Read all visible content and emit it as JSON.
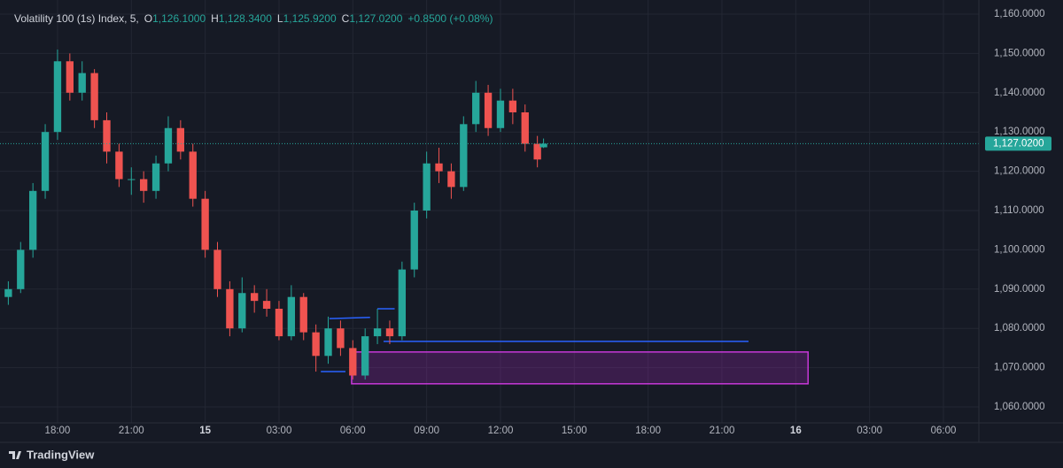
{
  "chart_data": {
    "type": "candlestick",
    "symbol": "Volatility 100 (1s) Index, 5,",
    "ohlc_legend": [
      {
        "prefix": "O",
        "text": "1,126.1000"
      },
      {
        "prefix": "H",
        "text": "1,128.3400"
      },
      {
        "prefix": "L",
        "text": "1,125.9200"
      },
      {
        "prefix": "C",
        "text": "1,127.0200"
      }
    ],
    "change": "+0.8500 (+0.08%)",
    "x": [
      16,
      16.5,
      17,
      17.5,
      18,
      18.5,
      19,
      19.5,
      20,
      20.5,
      21,
      21.5,
      22,
      22.5,
      23,
      23.5,
      24,
      24.5,
      25,
      25.5,
      26,
      26.5,
      27,
      27.5,
      28,
      28.5,
      29,
      29.5,
      30,
      30.5,
      31,
      31.5,
      32,
      32.5,
      33,
      33.5,
      34,
      34.5,
      35,
      35.5,
      36,
      36.5,
      37,
      37.5,
      37.75
    ],
    "open": [
      1088,
      1090,
      1100,
      1115,
      1130,
      1148,
      1140,
      1145,
      1133,
      1125,
      1118,
      1118,
      1115,
      1122,
      1131,
      1125,
      1113,
      1100,
      1090,
      1080,
      1089,
      1087,
      1085,
      1078,
      1088,
      1079,
      1073,
      1080,
      1075,
      1068,
      1078,
      1080,
      1078,
      1095,
      1110,
      1122,
      1120,
      1116,
      1132,
      1140,
      1131,
      1138,
      1135,
      1127,
      1126.1
    ],
    "high": [
      1092,
      1102,
      1117,
      1132,
      1151,
      1150,
      1148,
      1146,
      1135,
      1127,
      1121,
      1120,
      1124,
      1134,
      1133,
      1127,
      1115,
      1102,
      1092,
      1093,
      1091,
      1090,
      1087,
      1091,
      1089,
      1081,
      1083,
      1082,
      1077,
      1080,
      1085,
      1082,
      1097,
      1112,
      1125,
      1126,
      1122,
      1134,
      1143,
      1142,
      1141,
      1141,
      1137,
      1129,
      1128.34
    ],
    "low": [
      1086,
      1089,
      1098,
      1113,
      1128,
      1138,
      1138,
      1131,
      1122,
      1116,
      1114,
      1112,
      1113,
      1120,
      1123,
      1111,
      1098,
      1088,
      1078,
      1079,
      1084,
      1083,
      1077,
      1077,
      1077,
      1069,
      1071,
      1073,
      1067,
      1067,
      1076,
      1076,
      1077,
      1093,
      1108,
      1117,
      1113,
      1115,
      1130,
      1129,
      1130,
      1132,
      1125,
      1121,
      1125.92
    ],
    "close": [
      1090,
      1100,
      1115,
      1130,
      1148,
      1140,
      1145,
      1133,
      1125,
      1118,
      1118,
      1115,
      1122,
      1131,
      1125,
      1113,
      1100,
      1090,
      1080,
      1089,
      1087,
      1085,
      1078,
      1088,
      1079,
      1073,
      1080,
      1075,
      1068,
      1078,
      1080,
      1078,
      1095,
      1110,
      1122,
      1120,
      1116,
      1132,
      1140,
      1131,
      1138,
      1135,
      1127,
      1123,
      1127.02
    ],
    "up_color": "#26a69a",
    "down_color": "#ef5350",
    "last_price": {
      "value": 1127.02,
      "label": "1,127.0200"
    },
    "xlim": [
      15.95,
      55.44
    ],
    "ylim": [
      1057.3,
      1161.8
    ],
    "yticks": [
      {
        "value": 1060,
        "label": "1,060.0000"
      },
      {
        "value": 1070,
        "label": "1,070.0000"
      },
      {
        "value": 1080,
        "label": "1,080.0000"
      },
      {
        "value": 1090,
        "label": "1,090.0000"
      },
      {
        "value": 1100,
        "label": "1,100.0000"
      },
      {
        "value": 1110,
        "label": "1,110.0000"
      },
      {
        "value": 1120,
        "label": "1,120.0000"
      },
      {
        "value": 1130,
        "label": "1,130.0000"
      },
      {
        "value": 1140,
        "label": "1,140.0000"
      },
      {
        "value": 1150,
        "label": "1,150.0000"
      },
      {
        "value": 1160,
        "label": "1,160.0000"
      }
    ],
    "xticks": [
      {
        "value": 18,
        "label": "18:00"
      },
      {
        "value": 21,
        "label": "21:00"
      },
      {
        "value": 24,
        "label": "15"
      },
      {
        "value": 27,
        "label": "03:00"
      },
      {
        "value": 30,
        "label": "06:00"
      },
      {
        "value": 33,
        "label": "09:00"
      },
      {
        "value": 36,
        "label": "12:00"
      },
      {
        "value": 39,
        "label": "15:00"
      },
      {
        "value": 42,
        "label": "18:00"
      },
      {
        "value": 45,
        "label": "21:00"
      },
      {
        "value": 48,
        "label": "16"
      },
      {
        "value": 51,
        "label": "03:00"
      },
      {
        "value": 54,
        "label": "06:00"
      }
    ],
    "grid": true,
    "lines": [
      {
        "x": [
          29.05,
          30.7
        ],
        "y": [
          1082.5,
          1082.8
        ],
        "color": "#2962ff"
      },
      {
        "x": [
          31.0,
          31.7
        ],
        "y": [
          1085,
          1085
        ],
        "color": "#2962ff"
      },
      {
        "x": [
          28.7,
          29.7
        ],
        "y": [
          1069,
          1069
        ],
        "color": "#2962ff"
      },
      {
        "x": [
          31.25,
          46.08
        ],
        "y": [
          1076.7,
          1076.7
        ],
        "color": "#2962ff"
      }
    ],
    "box": {
      "x": [
        29.95,
        48.5
      ],
      "y": [
        1065.9,
        1074
      ],
      "color": "#9c27b0"
    },
    "brand": "TradingView"
  }
}
